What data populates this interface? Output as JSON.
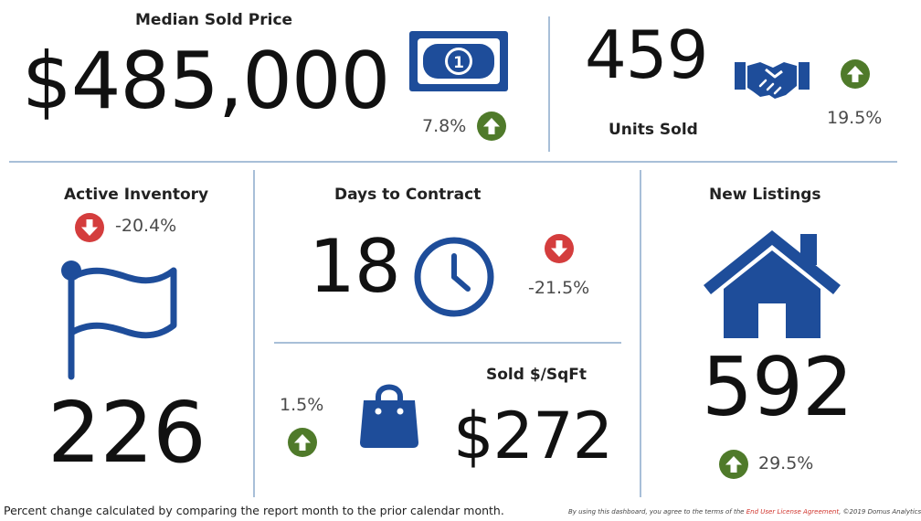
{
  "colors": {
    "icon_blue": "#1e4d9a",
    "up_green": "#4f7a2a",
    "down_red": "#d43d3d",
    "divider": "#a8bfd8"
  },
  "median_sold_price": {
    "label": "Median Sold Price",
    "value": "$485,000",
    "change": "7.8%",
    "direction": "up",
    "icon": "dollar-bill-icon"
  },
  "units_sold": {
    "label": "Units Sold",
    "value": "459",
    "change": "19.5%",
    "direction": "up",
    "icon": "handshake-icon"
  },
  "active_inventory": {
    "label": "Active Inventory",
    "value": "226",
    "change": "-20.4%",
    "direction": "down",
    "icon": "flag-icon"
  },
  "days_to_contract": {
    "label": "Days to Contract",
    "value": "18",
    "change": "-21.5%",
    "direction": "down",
    "icon": "clock-icon"
  },
  "sold_per_sqft": {
    "label": "Sold $/SqFt",
    "value": "$272",
    "change": "1.5%",
    "direction": "up",
    "icon": "shopping-bag-icon"
  },
  "new_listings": {
    "label": "New Listings",
    "value": "592",
    "change": "29.5%",
    "direction": "up",
    "icon": "house-icon"
  },
  "footer": {
    "note": "Percent change calculated by comparing the report month to the prior calendar month.",
    "terms_prefix": "By using this dashboard, you agree to the terms of the",
    "terms_link": "End User License Agreement",
    "copyright": "©2019 Domus Analytics"
  }
}
